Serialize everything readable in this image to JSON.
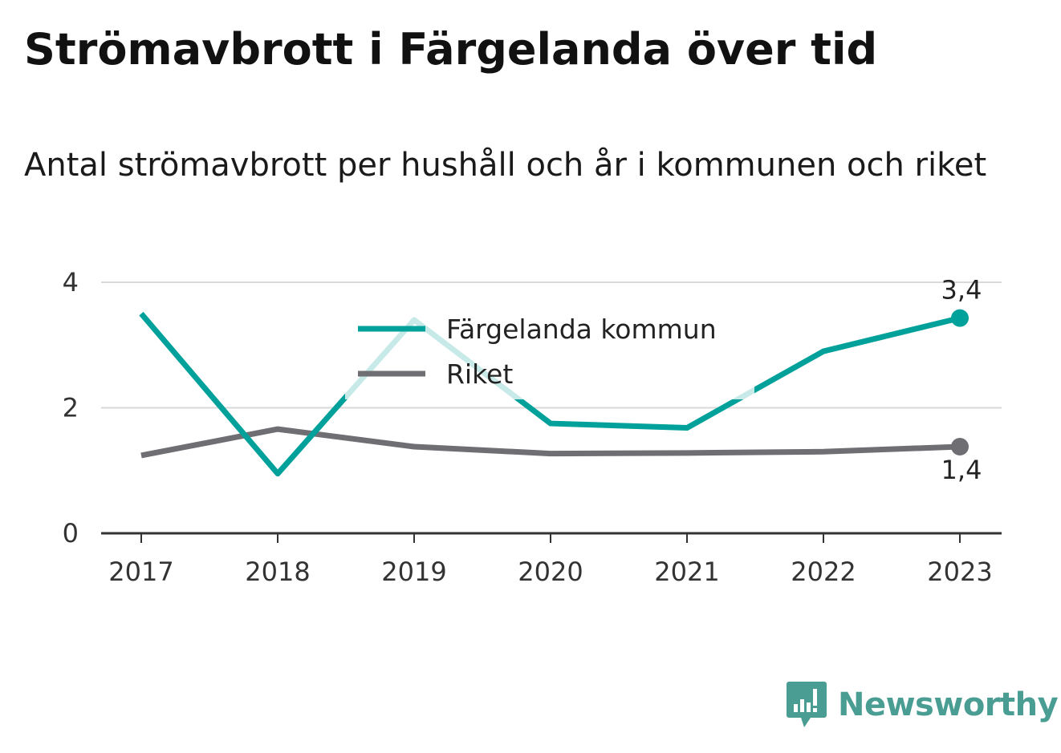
{
  "header": {
    "title": "Strömavbrott i Färgelanda över tid",
    "subtitle": "Antal strömavbrott per hushåll och år i kommunen och riket"
  },
  "chart_data": {
    "type": "line",
    "title": "Strömavbrott i Färgelanda över tid",
    "subtitle": "Antal strömavbrott per hushåll och år i kommunen och riket",
    "x": [
      "2017",
      "2018",
      "2019",
      "2020",
      "2021",
      "2022",
      "2023"
    ],
    "ylim": [
      0,
      4
    ],
    "yticks": [
      "0",
      "2",
      "4"
    ],
    "grid": true,
    "legend_position": "top-center",
    "series": [
      {
        "name": "Färgelanda kommun",
        "color": "#00a19a",
        "values": [
          3.5,
          0.95,
          3.4,
          1.75,
          1.68,
          2.9,
          3.43
        ],
        "end_label": "3,4"
      },
      {
        "name": "Riket",
        "color": "#6e6e73",
        "values": [
          1.24,
          1.66,
          1.38,
          1.27,
          1.28,
          1.3,
          1.38
        ],
        "end_label": "1,4"
      }
    ]
  },
  "branding": {
    "name": "Newsworthy",
    "icon": "newsworthy-logo-icon",
    "color": "#4a9d93"
  }
}
